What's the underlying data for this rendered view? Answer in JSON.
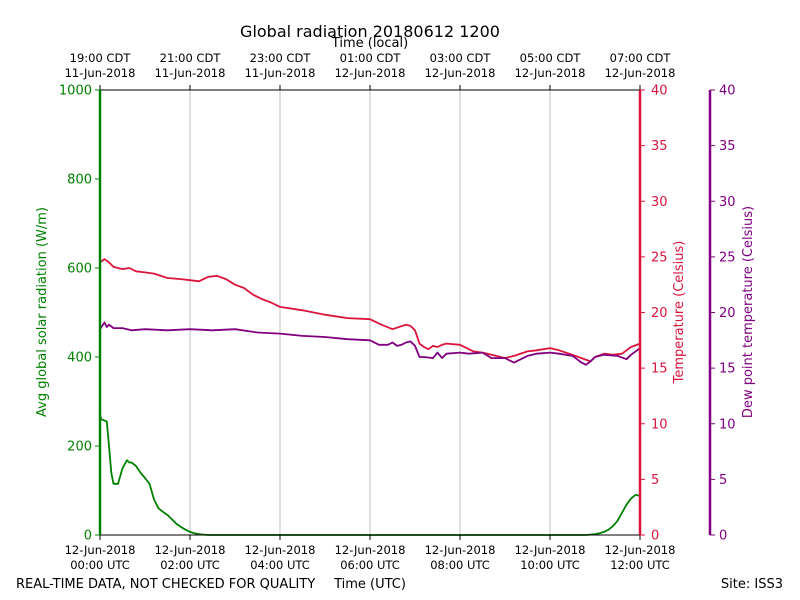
{
  "chart_data": {
    "type": "line",
    "title": "Global radiation 20180612 1200",
    "top_axis_label": "Time (local)",
    "xlabel": "Time (UTC)",
    "xlim_hours_utc": [
      0,
      12
    ],
    "bottom_ticks": [
      {
        "hour": 0,
        "date": "12-Jun-2018",
        "time": "00:00 UTC"
      },
      {
        "hour": 2,
        "date": "12-Jun-2018",
        "time": "02:00 UTC"
      },
      {
        "hour": 4,
        "date": "12-Jun-2018",
        "time": "04:00 UTC"
      },
      {
        "hour": 6,
        "date": "12-Jun-2018",
        "time": "06:00 UTC"
      },
      {
        "hour": 8,
        "date": "12-Jun-2018",
        "time": "08:00 UTC"
      },
      {
        "hour": 10,
        "date": "12-Jun-2018",
        "time": "10:00 UTC"
      },
      {
        "hour": 12,
        "date": "12-Jun-2018",
        "time": "12:00 UTC"
      }
    ],
    "top_ticks": [
      {
        "hour": 0,
        "time": "19:00 CDT",
        "date": "11-Jun-2018"
      },
      {
        "hour": 2,
        "time": "21:00 CDT",
        "date": "11-Jun-2018"
      },
      {
        "hour": 4,
        "time": "23:00 CDT",
        "date": "11-Jun-2018"
      },
      {
        "hour": 6,
        "time": "01:00 CDT",
        "date": "12-Jun-2018"
      },
      {
        "hour": 8,
        "time": "03:00 CDT",
        "date": "12-Jun-2018"
      },
      {
        "hour": 10,
        "time": "05:00 CDT",
        "date": "12-Jun-2018"
      },
      {
        "hour": 12,
        "time": "07:00 CDT",
        "date": "12-Jun-2018"
      }
    ],
    "vertical_grid_hours": [
      2,
      4,
      6,
      8,
      10
    ],
    "axes": {
      "radiation": {
        "label": "Avg global solar radiation (W/m)",
        "ylim": [
          0,
          1000
        ],
        "ticks": [
          0,
          200,
          400,
          600,
          800,
          1000
        ],
        "color": "#008000"
      },
      "temperature": {
        "label": "Temperature (Celsius)",
        "ylim": [
          0,
          40
        ],
        "ticks": [
          0,
          5,
          10,
          15,
          20,
          25,
          30,
          35,
          40
        ],
        "color": "#dc143c"
      },
      "dewpoint": {
        "label": "Dew point temperature (Celsius)",
        "ylim": [
          0,
          40
        ],
        "ticks": [
          0,
          5,
          10,
          15,
          20,
          25,
          30,
          35,
          40
        ],
        "color": "#800080"
      }
    },
    "series": [
      {
        "name": "Avg global solar radiation",
        "axis": "radiation",
        "color": "#008000",
        "x": [
          0,
          0.03,
          0.08,
          0.15,
          0.2,
          0.25,
          0.3,
          0.4,
          0.5,
          0.6,
          0.65,
          0.7,
          0.8,
          0.9,
          1.0,
          1.1,
          1.2,
          1.3,
          1.4,
          1.5,
          1.6,
          1.7,
          1.8,
          1.9,
          2.0,
          2.1,
          2.2,
          2.3,
          2.4,
          2.6,
          3.0,
          4.0,
          5.0,
          6.0,
          7.0,
          8.0,
          9.0,
          10.0,
          10.5,
          10.8,
          11.0,
          11.1,
          11.2,
          11.3,
          11.4,
          11.5,
          11.6,
          11.7,
          11.8,
          11.9,
          12.0
        ],
        "values": [
          270,
          260,
          258,
          255,
          200,
          140,
          115,
          115,
          150,
          168,
          163,
          163,
          155,
          140,
          128,
          115,
          80,
          60,
          52,
          45,
          35,
          25,
          18,
          12,
          7,
          4,
          2,
          1,
          0,
          0,
          0,
          0,
          0,
          0,
          0,
          0,
          0,
          0,
          0,
          0,
          2,
          4,
          7,
          12,
          20,
          32,
          50,
          68,
          82,
          90,
          88
        ]
      },
      {
        "name": "Temperature",
        "axis": "temperature",
        "color": "#dc143c",
        "x": [
          0,
          0.1,
          0.2,
          0.3,
          0.5,
          0.65,
          0.8,
          1.0,
          1.2,
          1.5,
          1.8,
          2.0,
          2.2,
          2.4,
          2.6,
          2.8,
          3.0,
          3.2,
          3.4,
          3.6,
          3.8,
          4.0,
          4.5,
          5.0,
          5.5,
          6.0,
          6.2,
          6.5,
          6.8,
          6.9,
          7.0,
          7.1,
          7.2,
          7.3,
          7.4,
          7.5,
          7.6,
          7.7,
          8.0,
          8.3,
          8.5,
          8.7,
          9.0,
          9.2,
          9.5,
          9.7,
          10.0,
          10.2,
          10.5,
          10.7,
          10.9,
          11.0,
          11.2,
          11.4,
          11.6,
          11.8,
          12.0
        ],
        "values": [
          24.5,
          24.8,
          24.5,
          24.1,
          23.9,
          24.0,
          23.7,
          23.6,
          23.5,
          23.1,
          23.0,
          22.9,
          22.8,
          23.2,
          23.3,
          23.0,
          22.5,
          22.2,
          21.6,
          21.2,
          20.9,
          20.5,
          20.2,
          19.8,
          19.5,
          19.4,
          19.0,
          18.5,
          18.9,
          18.8,
          18.4,
          17.2,
          16.9,
          16.7,
          17.0,
          16.9,
          17.1,
          17.2,
          17.1,
          16.5,
          16.4,
          16.2,
          15.9,
          16.1,
          16.5,
          16.6,
          16.8,
          16.6,
          16.2,
          15.9,
          15.6,
          16.0,
          16.3,
          16.2,
          16.3,
          16.9,
          17.2
        ]
      },
      {
        "name": "Dew point temperature",
        "axis": "dewpoint",
        "color": "#800080",
        "x": [
          0,
          0.1,
          0.15,
          0.2,
          0.3,
          0.5,
          0.7,
          1.0,
          1.5,
          2.0,
          2.5,
          3.0,
          3.5,
          4.0,
          4.5,
          5.0,
          5.5,
          6.0,
          6.2,
          6.4,
          6.5,
          6.6,
          6.7,
          6.8,
          6.9,
          7.0,
          7.1,
          7.2,
          7.4,
          7.5,
          7.6,
          7.7,
          8.0,
          8.2,
          8.5,
          8.7,
          9.0,
          9.2,
          9.5,
          9.7,
          10.0,
          10.2,
          10.5,
          10.6,
          10.7,
          10.8,
          10.9,
          11.0,
          11.2,
          11.5,
          11.7,
          11.8,
          12.0
        ],
        "values": [
          18.5,
          19.1,
          18.7,
          18.9,
          18.6,
          18.6,
          18.4,
          18.5,
          18.4,
          18.5,
          18.4,
          18.5,
          18.2,
          18.1,
          17.9,
          17.8,
          17.6,
          17.5,
          17.1,
          17.1,
          17.3,
          17.0,
          17.1,
          17.3,
          17.4,
          17.0,
          16.0,
          16.0,
          15.9,
          16.4,
          15.9,
          16.3,
          16.4,
          16.3,
          16.4,
          15.9,
          15.9,
          15.5,
          16.1,
          16.3,
          16.4,
          16.3,
          16.1,
          15.8,
          15.5,
          15.3,
          15.6,
          16.0,
          16.2,
          16.1,
          15.8,
          16.2,
          16.8
        ]
      }
    ]
  },
  "footer": {
    "disclaimer": "REAL-TIME DATA, NOT CHECKED FOR QUALITY",
    "site": "Site: ISS3"
  }
}
